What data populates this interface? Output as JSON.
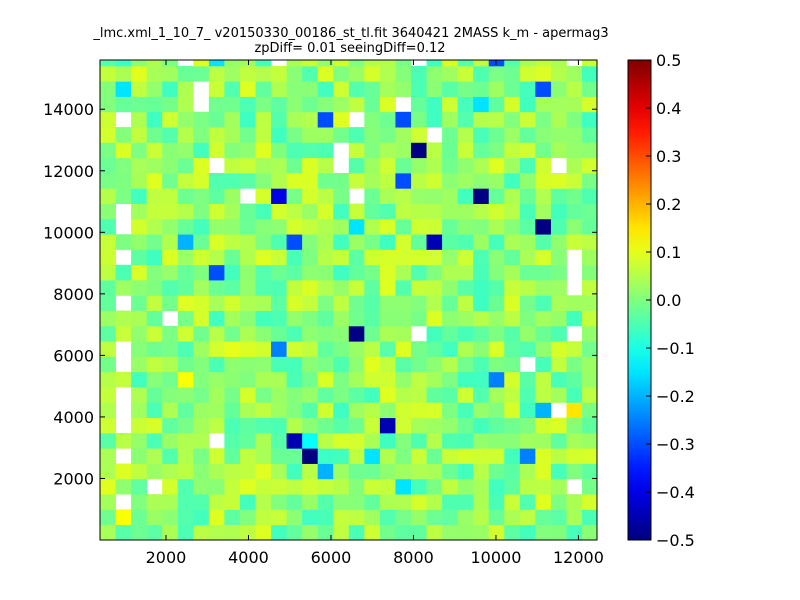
{
  "chart_data": {
    "type": "heatmap",
    "title": "_lmc.xml_1_10_7_ v20150330_00186_st_tl.fit 3640421 2MASS k_m - apermag3",
    "subtitle": "zpDiff= 0.01 seeingDiff=0.12",
    "xlabel": "",
    "ylabel": "",
    "xlim": [
      400,
      12450
    ],
    "ylim": [
      0,
      15600
    ],
    "x_ticks": [
      2000,
      4000,
      6000,
      8000,
      10000,
      12000
    ],
    "y_ticks": [
      2000,
      4000,
      6000,
      8000,
      10000,
      12000,
      14000
    ],
    "colormap": "jet",
    "color_range": [
      -0.5,
      0.5
    ],
    "colorbar_ticks": [
      0.5,
      0.4,
      0.3,
      0.2,
      0.1,
      0.0,
      -0.1,
      -0.2,
      -0.3,
      -0.4,
      -0.5
    ],
    "colorbar_tick_labels": [
      "0.5",
      "0.4",
      "0.3",
      "0.2",
      "0.1",
      "0.0",
      "−0.1",
      "−0.2",
      "−0.3",
      "−0.4",
      "−0.5"
    ],
    "grid": false,
    "cell_size": [
      377,
      497
    ],
    "x_origin": 400,
    "y_origin": 0,
    "notable_cells": [
      {
        "x": 8150,
        "y": 12900,
        "value": -0.5
      },
      {
        "x": 9650,
        "y": 11000,
        "value": -0.5
      },
      {
        "x": 11150,
        "y": 10000,
        "value": -0.5
      },
      {
        "x": 6650,
        "y": 6500,
        "value": -0.5
      },
      {
        "x": 5650,
        "y": 2500,
        "value": -0.5
      },
      {
        "x": 5150,
        "y": 3000,
        "value": -0.45
      },
      {
        "x": 7250,
        "y": 3500,
        "value": -0.45
      },
      {
        "x": 8500,
        "y": 9500,
        "value": -0.45
      },
      {
        "x": 4650,
        "y": 11000,
        "value": -0.4
      },
      {
        "x": 6000,
        "y": 13500,
        "value": -0.3
      },
      {
        "x": 7900,
        "y": 13500,
        "value": -0.3
      },
      {
        "x": 7900,
        "y": 11500,
        "value": -0.3
      },
      {
        "x": 10150,
        "y": 15500,
        "value": -0.3
      },
      {
        "x": 11150,
        "y": 14500,
        "value": -0.3
      },
      {
        "x": 3150,
        "y": 8500,
        "value": -0.3
      },
      {
        "x": 5150,
        "y": 9500,
        "value": -0.3
      },
      {
        "x": 4650,
        "y": 6000,
        "value": -0.25
      },
      {
        "x": 10150,
        "y": 5000,
        "value": -0.25
      },
      {
        "x": 10650,
        "y": 2500,
        "value": -0.25
      },
      {
        "x": 6000,
        "y": 2000,
        "value": -0.2
      },
      {
        "x": 11150,
        "y": 4000,
        "value": -0.2
      },
      {
        "x": 2650,
        "y": 9500,
        "value": -0.2
      },
      {
        "x": 3150,
        "y": 15500,
        "value": -0.15
      },
      {
        "x": 1150,
        "y": 14500,
        "value": -0.15
      },
      {
        "x": 9650,
        "y": 14000,
        "value": -0.15
      },
      {
        "x": 1150,
        "y": 6000,
        "value": -0.15
      },
      {
        "x": 6650,
        "y": 10000,
        "value": -0.15
      },
      {
        "x": 5650,
        "y": 3000,
        "value": -0.12
      },
      {
        "x": 6900,
        "y": 2500,
        "value": -0.15
      },
      {
        "x": 7900,
        "y": 1500,
        "value": -0.15
      },
      {
        "x": 11900,
        "y": 4000,
        "value": 0.15
      },
      {
        "x": 1150,
        "y": 500,
        "value": 0.12
      },
      {
        "x": 2650,
        "y": 5000,
        "value": 0.12
      },
      {
        "x": 3650,
        "y": 6000,
        "value": 0.1
      },
      {
        "x": 5150,
        "y": 3500,
        "value": 0.05
      }
    ],
    "empty_cells": [
      [
        2650,
        15500
      ],
      [
        4900,
        15500
      ],
      [
        8150,
        15500
      ],
      [
        11900,
        15500
      ],
      [
        2900,
        14500
      ],
      [
        2900,
        14000
      ],
      [
        7650,
        14000
      ],
      [
        1150,
        13500
      ],
      [
        6650,
        13500
      ],
      [
        8400,
        13000
      ],
      [
        6150,
        12500
      ],
      [
        6150,
        12000
      ],
      [
        3400,
        12000
      ],
      [
        11400,
        12000
      ],
      [
        3900,
        11000
      ],
      [
        6650,
        11000
      ],
      [
        1150,
        10500
      ],
      [
        1150,
        10000
      ],
      [
        1150,
        9000
      ],
      [
        11900,
        9000
      ],
      [
        11900,
        8500
      ],
      [
        11900,
        8000
      ],
      [
        1150,
        7500
      ],
      [
        2150,
        7000
      ],
      [
        8150,
        6500
      ],
      [
        11900,
        6500
      ],
      [
        900,
        6000
      ],
      [
        900,
        5500
      ],
      [
        10650,
        5500
      ],
      [
        900,
        4500
      ],
      [
        900,
        4000
      ],
      [
        11400,
        4000
      ],
      [
        900,
        3500
      ],
      [
        3150,
        3000
      ],
      [
        900,
        2500
      ],
      [
        1650,
        1500
      ],
      [
        900,
        1000
      ],
      [
        11900,
        1500
      ]
    ]
  }
}
